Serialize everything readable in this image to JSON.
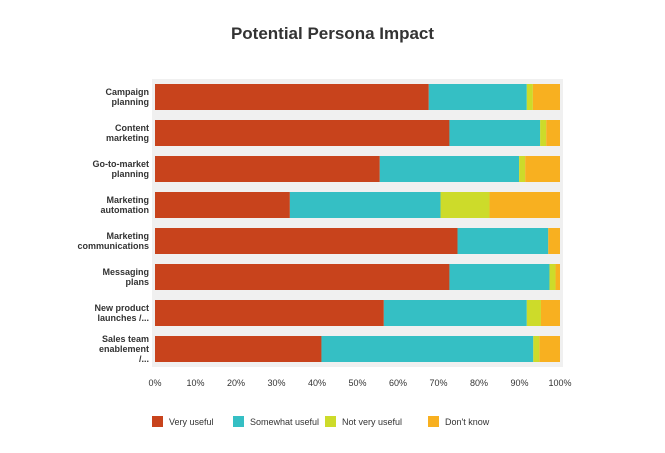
{
  "chart_data": {
    "type": "bar",
    "orientation": "horizontal",
    "stacked": true,
    "normalized": true,
    "title": "Potential Persona Impact",
    "categories": [
      [
        "Campaign",
        "planning"
      ],
      [
        "Content",
        "marketing"
      ],
      [
        "Go-to-market",
        "planning"
      ],
      [
        "Marketing",
        "automation"
      ],
      [
        "Marketing",
        "communications"
      ],
      [
        "Messaging",
        "plans"
      ],
      [
        "New product",
        "launches /..."
      ],
      [
        "Sales team",
        "enablement",
        "/..."
      ]
    ],
    "series": [
      {
        "name": "Very useful",
        "color": "#c8431c",
        "values": [
          67.6,
          72.7,
          55.5,
          33.3,
          74.7,
          72.7,
          56.5,
          41.1
        ]
      },
      {
        "name": "Somewhat useful",
        "color": "#35bfc4",
        "values": [
          24.2,
          22.4,
          34.4,
          37.2,
          22.4,
          24.7,
          35.3,
          52.3
        ]
      },
      {
        "name": "Not very useful",
        "color": "#cddb2a",
        "values": [
          1.5,
          1.5,
          1.5,
          12.1,
          0,
          1.5,
          3.5,
          1.5
        ]
      },
      {
        "name": "Don't know",
        "color": "#f8b020",
        "values": [
          6.7,
          3.4,
          8.6,
          17.4,
          2.9,
          1.1,
          4.7,
          5.1
        ]
      }
    ],
    "xlim": [
      0,
      100
    ],
    "x_ticks": [
      "0%",
      "10%",
      "20%",
      "30%",
      "40%",
      "50%",
      "60%",
      "70%",
      "80%",
      "90%",
      "100%"
    ],
    "legend": "bottom",
    "grid": false,
    "plot_background": "#f0f0f0"
  }
}
